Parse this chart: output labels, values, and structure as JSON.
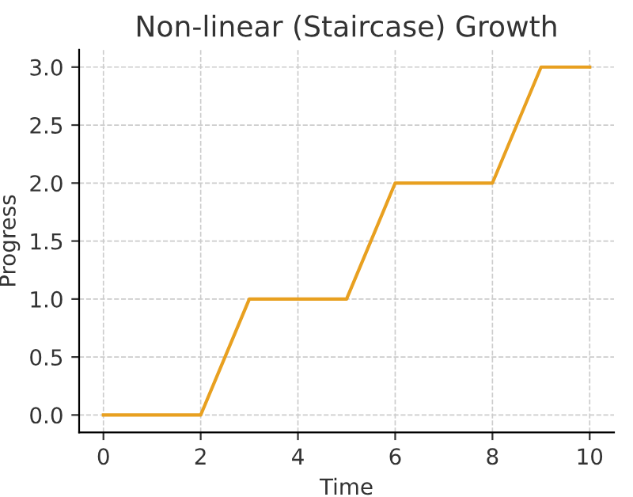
{
  "chart_data": {
    "type": "line",
    "title": "Non-linear (Staircase) Growth",
    "xlabel": "Time",
    "ylabel": "Progress",
    "x": [
      0,
      2,
      3,
      5,
      6,
      8,
      9,
      10
    ],
    "series": [
      {
        "color": "#e8a020",
        "values": [
          0,
          0,
          1,
          1,
          2,
          2,
          3,
          3
        ]
      }
    ],
    "xlim": [
      -0.5,
      10.5
    ],
    "ylim": [
      -0.15,
      3.15
    ],
    "xticks": [
      0,
      2,
      4,
      6,
      8,
      10
    ],
    "yticks": [
      {
        "value": 0,
        "label": "0.0"
      },
      {
        "value": 0.5,
        "label": "0.5"
      },
      {
        "value": 1,
        "label": "1.0"
      },
      {
        "value": 1.5,
        "label": "1.5"
      },
      {
        "value": 2,
        "label": "2.0"
      },
      {
        "value": 2.5,
        "label": "2.5"
      },
      {
        "value": 3,
        "label": "3.0"
      }
    ],
    "grid": true,
    "line_style": "solid",
    "marker": "none"
  }
}
